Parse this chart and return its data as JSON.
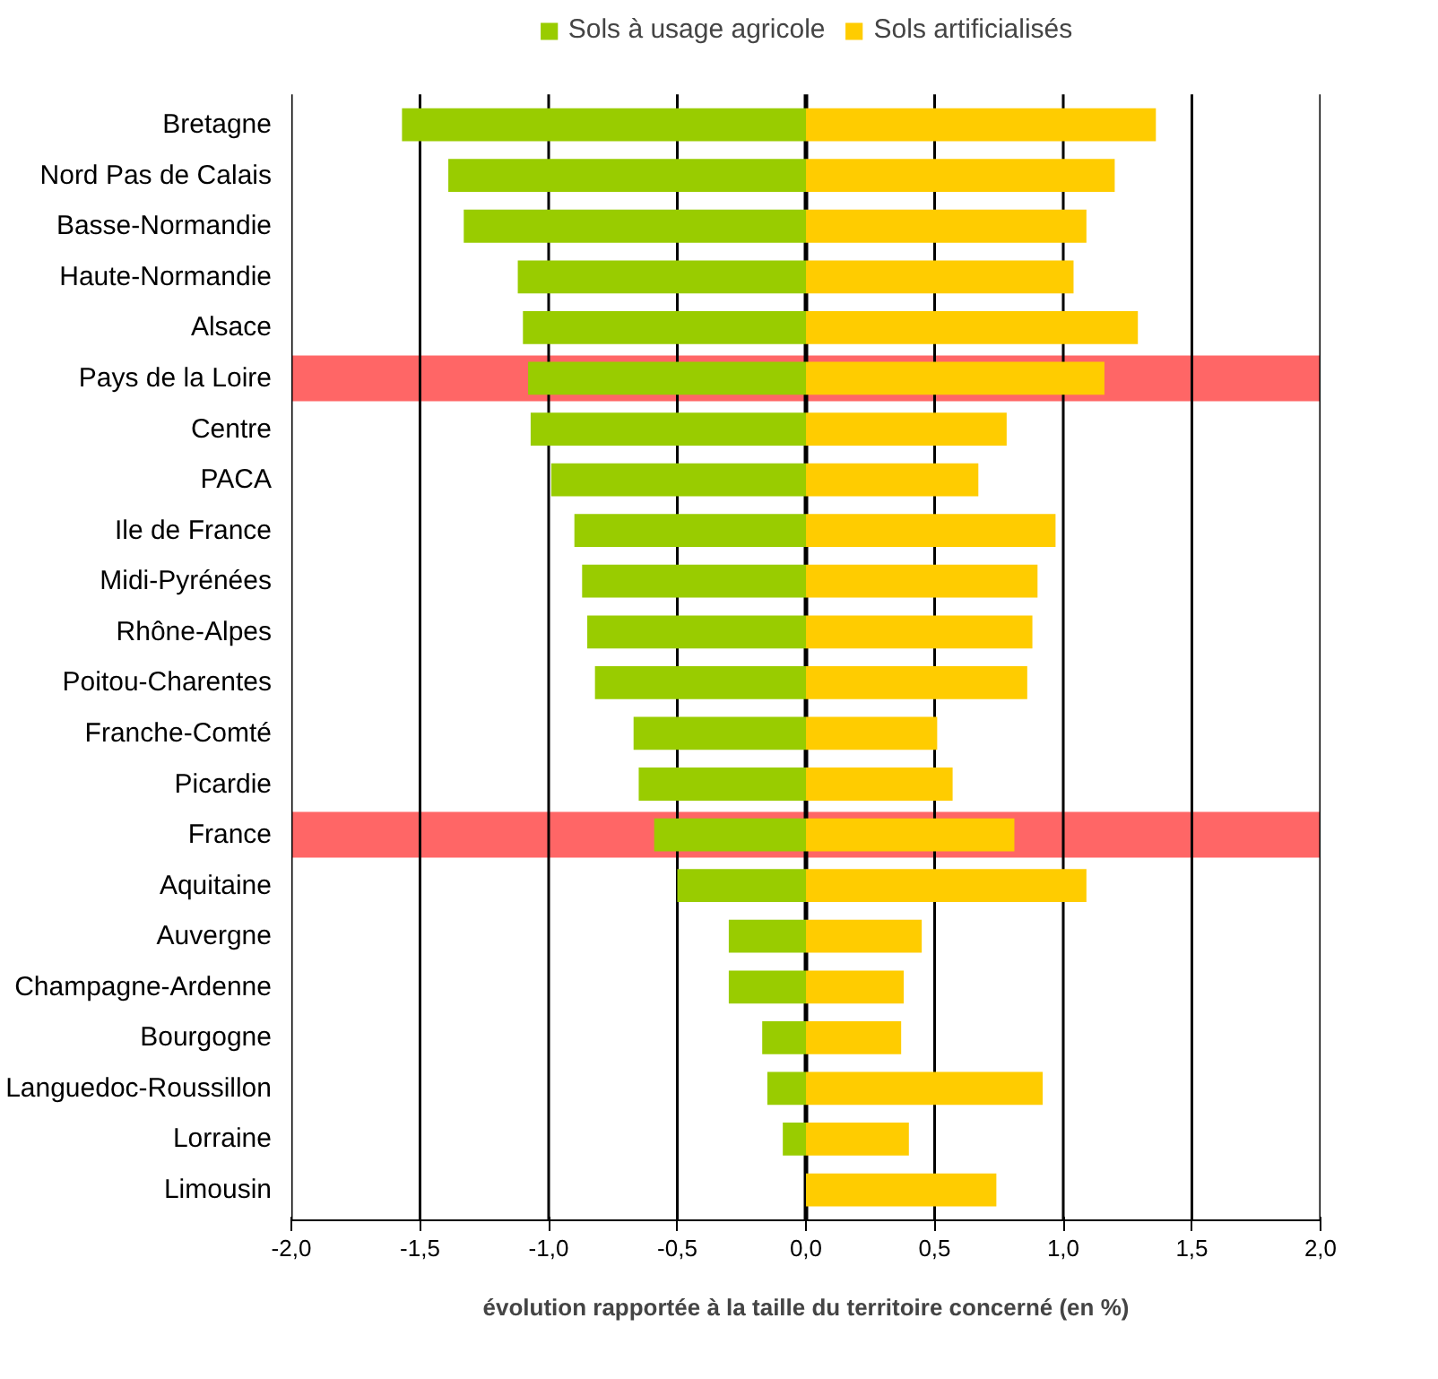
{
  "chart_data": {
    "type": "bar",
    "orientation": "horizontal",
    "xlabel": "évolution rapportée à la taille du territoire concerné (en %)",
    "categories": [
      "Bretagne",
      "Nord Pas de Calais",
      "Basse-Normandie",
      "Haute-Normandie",
      "Alsace",
      "Pays de la Loire",
      "Centre",
      "PACA",
      "Ile de France",
      "Midi-Pyrénées",
      "Rhône-Alpes",
      "Poitou-Charentes",
      "Franche-Comté",
      "Picardie",
      "France",
      "Aquitaine",
      "Auvergne",
      "Champagne-Ardenne",
      "Bourgogne",
      "Languedoc-Roussillon",
      "Lorraine",
      "Limousin"
    ],
    "series": [
      {
        "name": "Sols à usage agricole",
        "color": "#99cc00",
        "values": [
          -1.57,
          -1.39,
          -1.33,
          -1.12,
          -1.1,
          -1.08,
          -1.07,
          -0.99,
          -0.9,
          -0.87,
          -0.85,
          -0.82,
          -0.67,
          -0.65,
          -0.59,
          -0.5,
          -0.3,
          -0.3,
          -0.17,
          -0.15,
          -0.09,
          0
        ]
      },
      {
        "name": "Sols artificialisés",
        "color": "#ffcc00",
        "values": [
          1.36,
          1.2,
          1.09,
          1.04,
          1.29,
          1.16,
          0.78,
          0.67,
          0.97,
          0.9,
          0.88,
          0.86,
          0.51,
          0.57,
          0.81,
          1.09,
          0.45,
          0.38,
          0.37,
          0.92,
          0.4,
          0.74
        ]
      }
    ],
    "bands": [
      {
        "axis": "y",
        "from": "Pays de la Loire",
        "to": "Pays de la Loire",
        "color": "#ff6666"
      },
      {
        "axis": "y",
        "from": "France",
        "to": "France",
        "color": "#ff6666"
      }
    ],
    "xlim": [
      -2,
      2
    ],
    "xticks": [
      {
        "value": -2,
        "label": "-2,0"
      },
      {
        "value": -1.5,
        "label": "-1,5"
      },
      {
        "value": -1,
        "label": "-1,0"
      },
      {
        "value": -0.5,
        "label": "-0,5"
      },
      {
        "value": 0,
        "label": "0,0"
      },
      {
        "value": 0.5,
        "label": "0,5"
      },
      {
        "value": 1,
        "label": "1,0"
      },
      {
        "value": 1.5,
        "label": "1,5"
      },
      {
        "value": 2,
        "label": "2,0"
      }
    ],
    "grid": "x",
    "legend": "top",
    "stacked": true
  }
}
